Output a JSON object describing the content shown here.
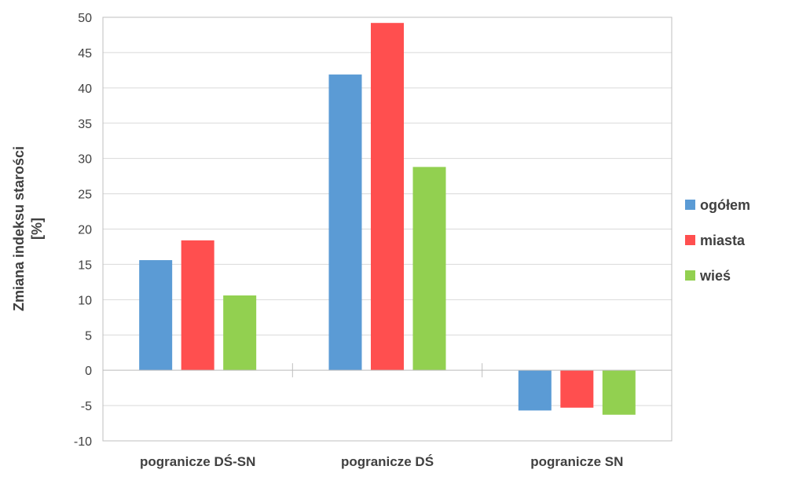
{
  "chart_data": {
    "type": "bar",
    "categories": [
      "pogranicze DŚ-SN",
      "pogranicze DŚ",
      "pogranicze SN"
    ],
    "series": [
      {
        "name": "ogółem",
        "color": "#5B9BD5",
        "values": [
          15.6,
          41.9,
          -5.7
        ]
      },
      {
        "name": "miasta",
        "color": "#FF4F4F",
        "values": [
          18.4,
          49.2,
          -5.3
        ]
      },
      {
        "name": "wieś",
        "color": "#92D050",
        "values": [
          10.6,
          28.8,
          -6.3
        ]
      }
    ],
    "ylabel_line1": "Zmiana indeksu starości",
    "ylabel_line2": "[%]",
    "ylim": [
      -10,
      50
    ],
    "yticks": [
      "50",
      "45",
      "40",
      "35",
      "30",
      "25",
      "20",
      "15",
      "10",
      "5",
      "0",
      "-5",
      "-10"
    ],
    "grid": true,
    "legend_position": "right"
  }
}
